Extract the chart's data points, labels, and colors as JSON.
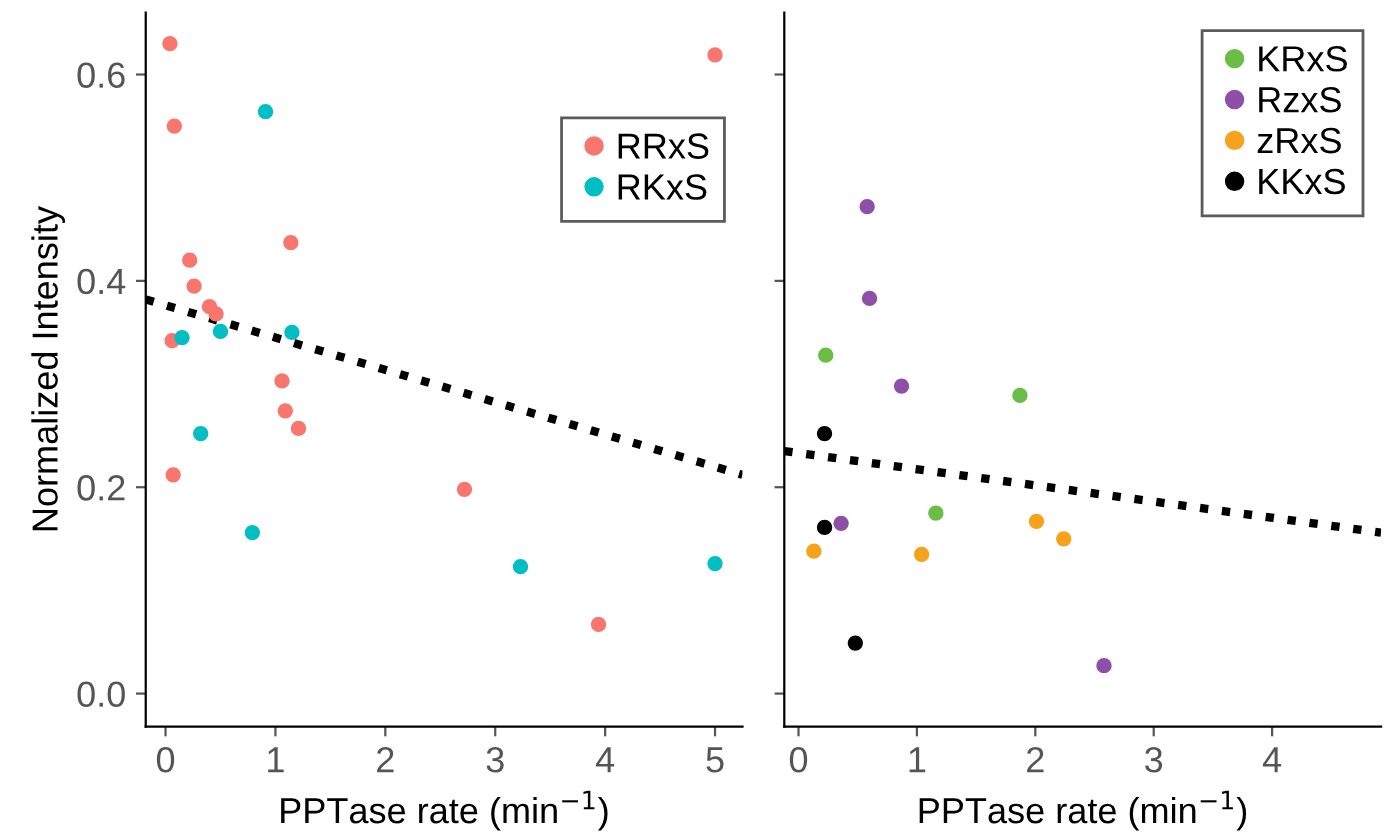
{
  "chart_data": [
    {
      "type": "scatter",
      "xlabel": "PPTase rate (min$^{−1}$)",
      "ylabel": "Normalized Intensity",
      "xlim": [
        -0.18,
        5.25
      ],
      "xticks": [
        0,
        1,
        2,
        3,
        4,
        5
      ],
      "ylim": [
        -0.032,
        0.66
      ],
      "yticks": [
        {
          "value": 0.0,
          "label": "0.0"
        },
        0.2,
        0.4,
        0.6
      ],
      "grid": false,
      "legend": "right",
      "series": [
        {
          "name": "RRxS",
          "color": "#f8766d",
          "marker": "circle",
          "x": [
            0.04,
            0.08,
            0.22,
            0.26,
            0.4,
            0.46,
            0.06,
            0.07,
            1.14,
            1.06,
            1.09,
            1.21,
            2.72,
            3.94,
            5.0
          ],
          "values": [
            0.63,
            0.55,
            0.42,
            0.395,
            0.375,
            0.368,
            0.342,
            0.212,
            0.437,
            0.303,
            0.274,
            0.257,
            0.198,
            0.067,
            0.619
          ]
        },
        {
          "name": "RKxS",
          "color": "#00bfc4",
          "marker": "circle",
          "x": [
            0.15,
            0.5,
            1.15,
            0.91,
            0.32,
            0.79,
            3.23,
            5.0
          ],
          "values": [
            0.345,
            0.351,
            0.35,
            0.564,
            0.252,
            0.156,
            0.123,
            0.126
          ]
        },
        {
          "type": "line",
          "line_style": "dotted",
          "color": "#000000",
          "x": [
            -0.18,
            5.25
          ],
          "values": [
            0.382,
            0.212
          ]
        }
      ]
    },
    {
      "type": "scatter",
      "xlabel": "PPTase rate (min$^{−1}$)",
      "xlim": [
        -0.12,
        4.92
      ],
      "xticks": [
        0,
        1,
        2,
        3,
        4
      ],
      "ylim": [
        -0.032,
        0.66
      ],
      "yticks": [
        {
          "value": 0.0,
          "label": null
        },
        {
          "value": 0.2,
          "label": null
        },
        {
          "value": 0.4,
          "label": null
        },
        {
          "value": 0.6,
          "label": null
        }
      ],
      "tick_labels": "x",
      "grid": false,
      "legend": "top right",
      "series": [
        {
          "name": "KRxS",
          "color": "#6abd45",
          "marker": "circle",
          "x": [
            0.23,
            1.87,
            1.16
          ],
          "values": [
            0.328,
            0.289,
            0.175
          ]
        },
        {
          "name": "RzxS",
          "color": "#8e4fa8",
          "marker": "circle",
          "x": [
            0.58,
            0.6,
            0.87,
            0.36,
            2.58
          ],
          "values": [
            0.472,
            0.383,
            0.298,
            0.165,
            0.027
          ]
        },
        {
          "name": "zRxS",
          "color": "#f7a21b",
          "marker": "circle",
          "x": [
            0.13,
            1.04,
            2.01,
            2.24
          ],
          "values": [
            0.138,
            0.135,
            0.167,
            0.15
          ]
        },
        {
          "name": "KKxS",
          "color": "#000000",
          "marker": "circle",
          "x": [
            0.22,
            0.22,
            0.48
          ],
          "values": [
            0.252,
            0.161,
            0.049
          ]
        },
        {
          "type": "line",
          "line_style": "dotted",
          "color": "#000000",
          "x": [
            -0.12,
            4.92
          ],
          "values": [
            0.235,
            0.156
          ]
        }
      ]
    }
  ]
}
